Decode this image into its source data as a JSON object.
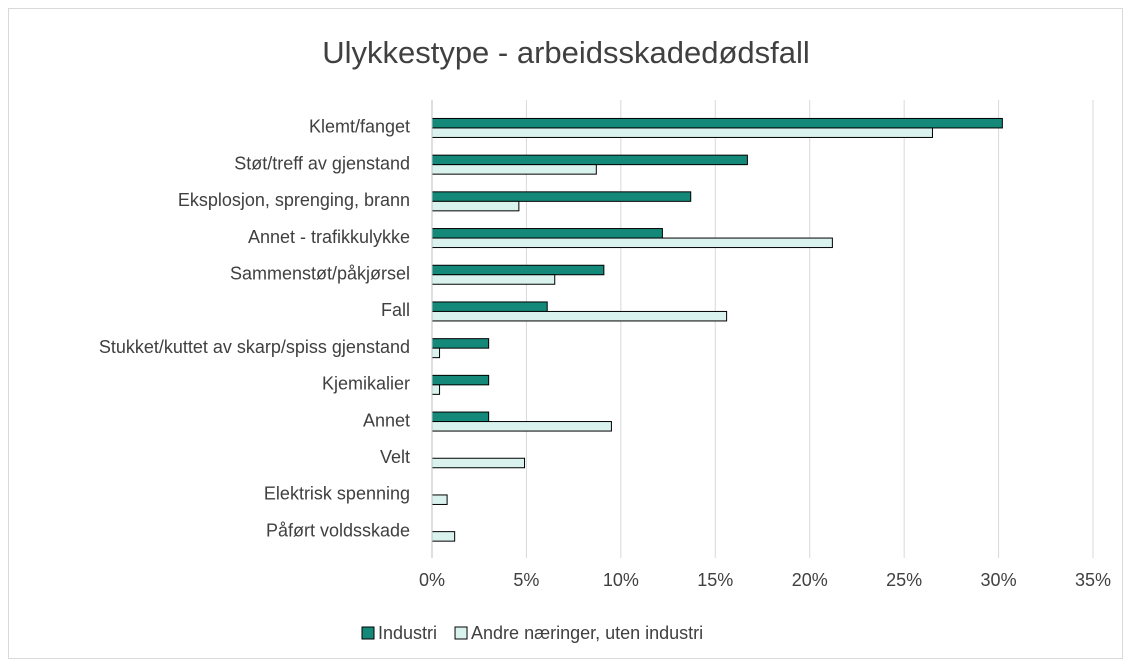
{
  "chart_data": {
    "type": "bar",
    "orientation": "horizontal",
    "title": "Ulykkestype - arbeidsskadedødsfall",
    "categories": [
      "Klemt/fanget",
      "Støt/treff av gjenstand",
      "Eksplosjon, sprenging, brann",
      "Annet - trafikkulykke",
      "Sammenstøt/påkjørsel",
      "Fall",
      "Stukket/kuttet av skarp/spiss gjenstand",
      "Kjemikalier",
      "Annet",
      "Velt",
      "Elektrisk spenning",
      "Påført voldsskade"
    ],
    "series": [
      {
        "name": "Industri",
        "color": "#14897a",
        "values": [
          30.2,
          16.7,
          13.7,
          12.2,
          9.1,
          6.1,
          3.0,
          3.0,
          3.0,
          null,
          null,
          null
        ]
      },
      {
        "name": "Andre næringer, uten industri",
        "color": "#d9f2ee",
        "values": [
          26.5,
          8.7,
          4.6,
          21.2,
          6.5,
          15.6,
          0.4,
          0.4,
          9.5,
          4.9,
          0.8,
          1.2
        ]
      }
    ],
    "xlim": [
      0,
      35
    ],
    "xticks": [
      {
        "value": 0,
        "label": "0%"
      },
      {
        "value": 5,
        "label": "5%"
      },
      {
        "value": 10,
        "label": "10%"
      },
      {
        "value": 15,
        "label": "15%"
      },
      {
        "value": 20,
        "label": "20%"
      },
      {
        "value": 25,
        "label": "25%"
      },
      {
        "value": 30,
        "label": "30%"
      },
      {
        "value": 35,
        "label": "35%"
      }
    ],
    "grid": true,
    "legend": "bottom"
  }
}
